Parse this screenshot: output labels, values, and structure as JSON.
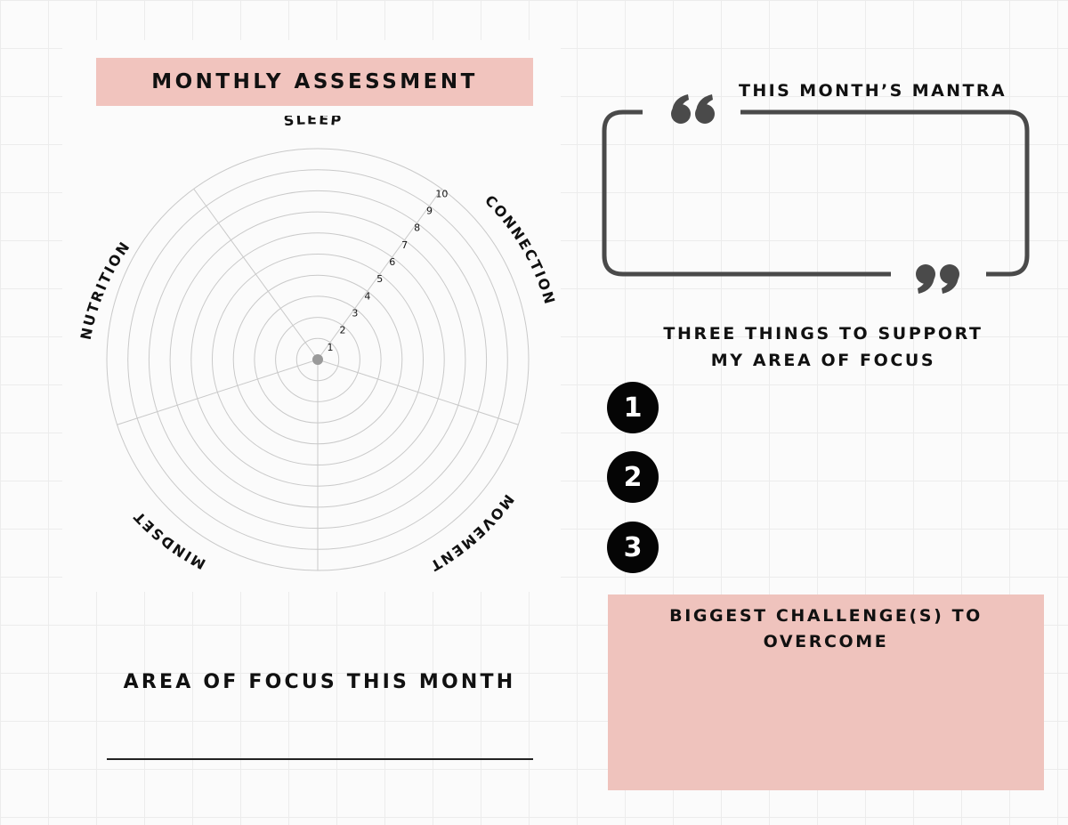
{
  "header": {
    "title": "MONTHLY ASSESSMENT"
  },
  "wheel": {
    "categories": [
      "SLEEP",
      "CONNECTION",
      "MOVEMENT",
      "MINDSET",
      "NUTRITION"
    ],
    "scale": [
      "1",
      "2",
      "3",
      "4",
      "5",
      "6",
      "7",
      "8",
      "9",
      "10"
    ]
  },
  "mantra": {
    "label": "THIS MONTH’S MANTRA",
    "quote_icon": "quote-icon"
  },
  "support": {
    "title_line1": "THREE THINGS TO SUPPORT",
    "title_line2": "MY AREA OF FOCUS",
    "items": [
      "1",
      "2",
      "3"
    ]
  },
  "challenge": {
    "line1": "BIGGEST CHALLENGE(S) TO",
    "line2": "OVERCOME"
  },
  "focus": {
    "label": "AREA OF FOCUS THIS MONTH"
  },
  "colors": {
    "accent": "#f1c4be",
    "frame": "#4a4a4a",
    "grid": "#ececec"
  }
}
